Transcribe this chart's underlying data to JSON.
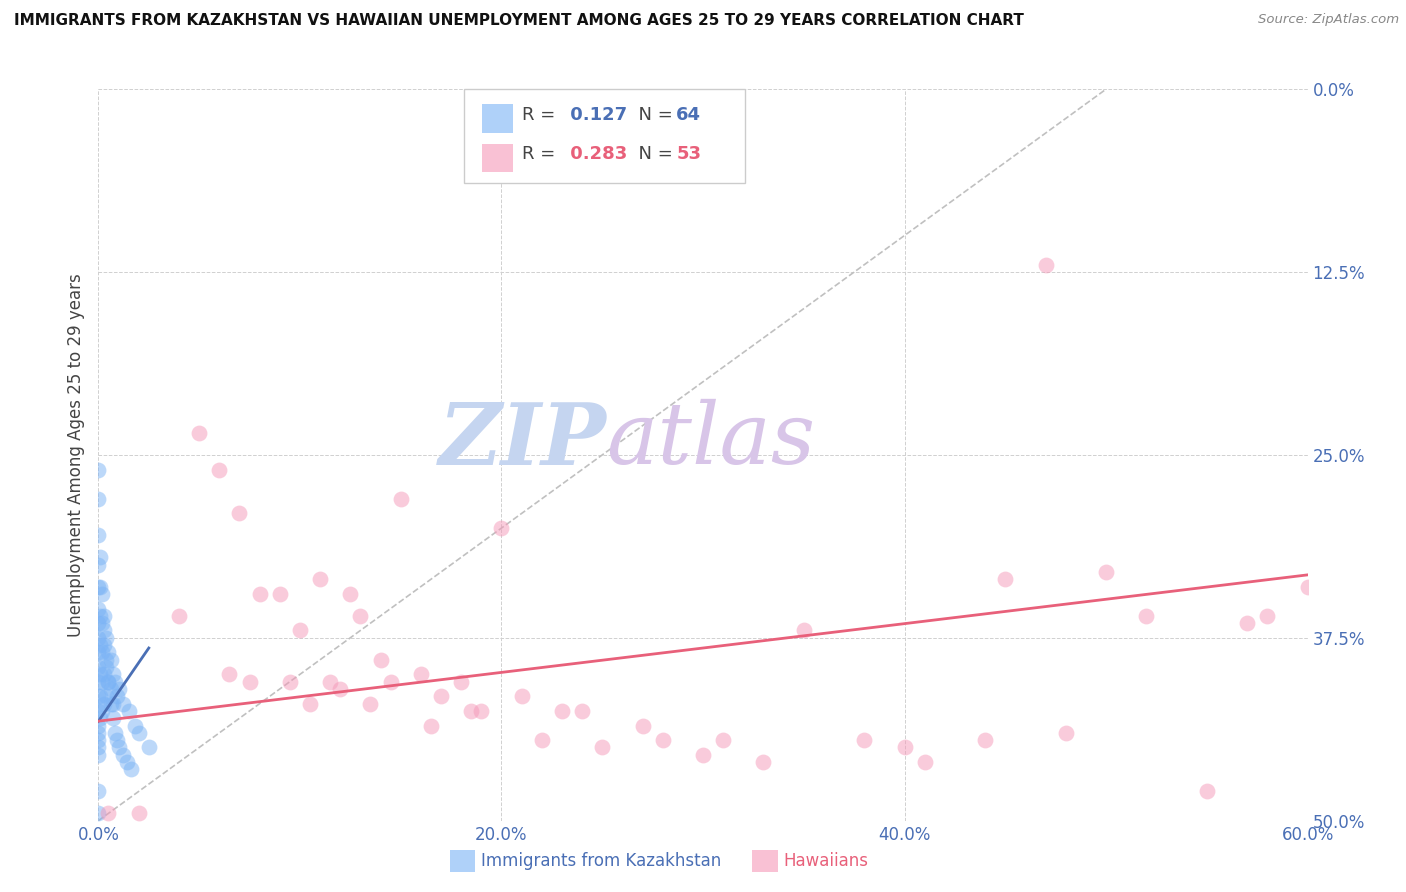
{
  "title": "IMMIGRANTS FROM KAZAKHSTAN VS HAWAIIAN UNEMPLOYMENT AMONG AGES 25 TO 29 YEARS CORRELATION CHART",
  "source": "Source: ZipAtlas.com",
  "xlabel_ticks": [
    "0.0%",
    "20.0%",
    "40.0%",
    "60.0%"
  ],
  "xlabel_tick_vals": [
    0.0,
    0.2,
    0.4,
    0.6
  ],
  "ylabel_ticks_right": [
    "50.0%",
    "37.5%",
    "25.0%",
    "12.5%",
    "0.0%"
  ],
  "ylabel_tick_vals": [
    0.5,
    0.375,
    0.25,
    0.125,
    0.0
  ],
  "ylabel_label": "Unemployment Among Ages 25 to 29 years",
  "legend_label1": "Immigrants from Kazakhstan",
  "legend_label2": "Hawaiians",
  "R1": 0.127,
  "N1": 64,
  "R2": 0.283,
  "N2": 53,
  "color1": "#7ab3f5",
  "color2": "#f598b8",
  "trendline1_color": "#4a6fb5",
  "trendline2_color": "#e8607a",
  "diagonal_color": "#c0c0c0",
  "watermark_zip": "ZIP",
  "watermark_atlas": "atlas",
  "watermark_color_zip": "#c5d5f0",
  "watermark_color_atlas": "#d8c5e8",
  "xmin": 0.0,
  "xmax": 0.6,
  "ymin": 0.0,
  "ymax": 0.5,
  "blue_dots_x": [
    0.0,
    0.0,
    0.0,
    0.0,
    0.0,
    0.0,
    0.0,
    0.0,
    0.0,
    0.0,
    0.0,
    0.0,
    0.0,
    0.0,
    0.0,
    0.0,
    0.0,
    0.0,
    0.0,
    0.0,
    0.001,
    0.001,
    0.001,
    0.001,
    0.001,
    0.001,
    0.001,
    0.002,
    0.002,
    0.002,
    0.002,
    0.002,
    0.003,
    0.003,
    0.003,
    0.003,
    0.004,
    0.004,
    0.004,
    0.005,
    0.005,
    0.006,
    0.006,
    0.007,
    0.007,
    0.008,
    0.009,
    0.01,
    0.012,
    0.015,
    0.018,
    0.02,
    0.025,
    0.003,
    0.004,
    0.005,
    0.006,
    0.007,
    0.008,
    0.009,
    0.01,
    0.012,
    0.014,
    0.016
  ],
  "blue_dots_y": [
    0.24,
    0.22,
    0.195,
    0.175,
    0.16,
    0.145,
    0.135,
    0.125,
    0.115,
    0.105,
    0.095,
    0.085,
    0.075,
    0.065,
    0.06,
    0.055,
    0.05,
    0.045,
    0.02,
    0.005,
    0.18,
    0.16,
    0.14,
    0.12,
    0.1,
    0.085,
    0.07,
    0.155,
    0.135,
    0.115,
    0.095,
    0.075,
    0.14,
    0.12,
    0.1,
    0.08,
    0.125,
    0.105,
    0.085,
    0.115,
    0.095,
    0.11,
    0.09,
    0.1,
    0.08,
    0.095,
    0.085,
    0.09,
    0.08,
    0.075,
    0.065,
    0.06,
    0.05,
    0.13,
    0.11,
    0.095,
    0.08,
    0.07,
    0.06,
    0.055,
    0.05,
    0.045,
    0.04,
    0.035
  ],
  "pink_dots_x": [
    0.02,
    0.04,
    0.05,
    0.06,
    0.065,
    0.07,
    0.075,
    0.08,
    0.09,
    0.095,
    0.1,
    0.105,
    0.11,
    0.115,
    0.12,
    0.125,
    0.13,
    0.135,
    0.14,
    0.145,
    0.15,
    0.16,
    0.165,
    0.17,
    0.18,
    0.185,
    0.19,
    0.2,
    0.21,
    0.22,
    0.23,
    0.24,
    0.25,
    0.27,
    0.28,
    0.3,
    0.31,
    0.33,
    0.35,
    0.38,
    0.4,
    0.41,
    0.44,
    0.45,
    0.47,
    0.48,
    0.5,
    0.52,
    0.55,
    0.57,
    0.58,
    0.6,
    0.005
  ],
  "pink_dots_y": [
    0.005,
    0.14,
    0.265,
    0.24,
    0.1,
    0.21,
    0.095,
    0.155,
    0.155,
    0.095,
    0.13,
    0.08,
    0.165,
    0.095,
    0.09,
    0.155,
    0.14,
    0.08,
    0.11,
    0.095,
    0.22,
    0.1,
    0.065,
    0.085,
    0.095,
    0.075,
    0.075,
    0.2,
    0.085,
    0.055,
    0.075,
    0.075,
    0.05,
    0.065,
    0.055,
    0.045,
    0.055,
    0.04,
    0.13,
    0.055,
    0.05,
    0.04,
    0.055,
    0.165,
    0.38,
    0.06,
    0.17,
    0.14,
    0.02,
    0.135,
    0.14,
    0.16,
    0.005
  ],
  "blue_trend_x": [
    0.0,
    0.025
  ],
  "blue_trend_y_start": 0.068,
  "blue_trend_y_end": 0.118,
  "pink_trend_x": [
    0.0,
    0.6
  ],
  "pink_trend_y_start": 0.068,
  "pink_trend_y_end": 0.168
}
